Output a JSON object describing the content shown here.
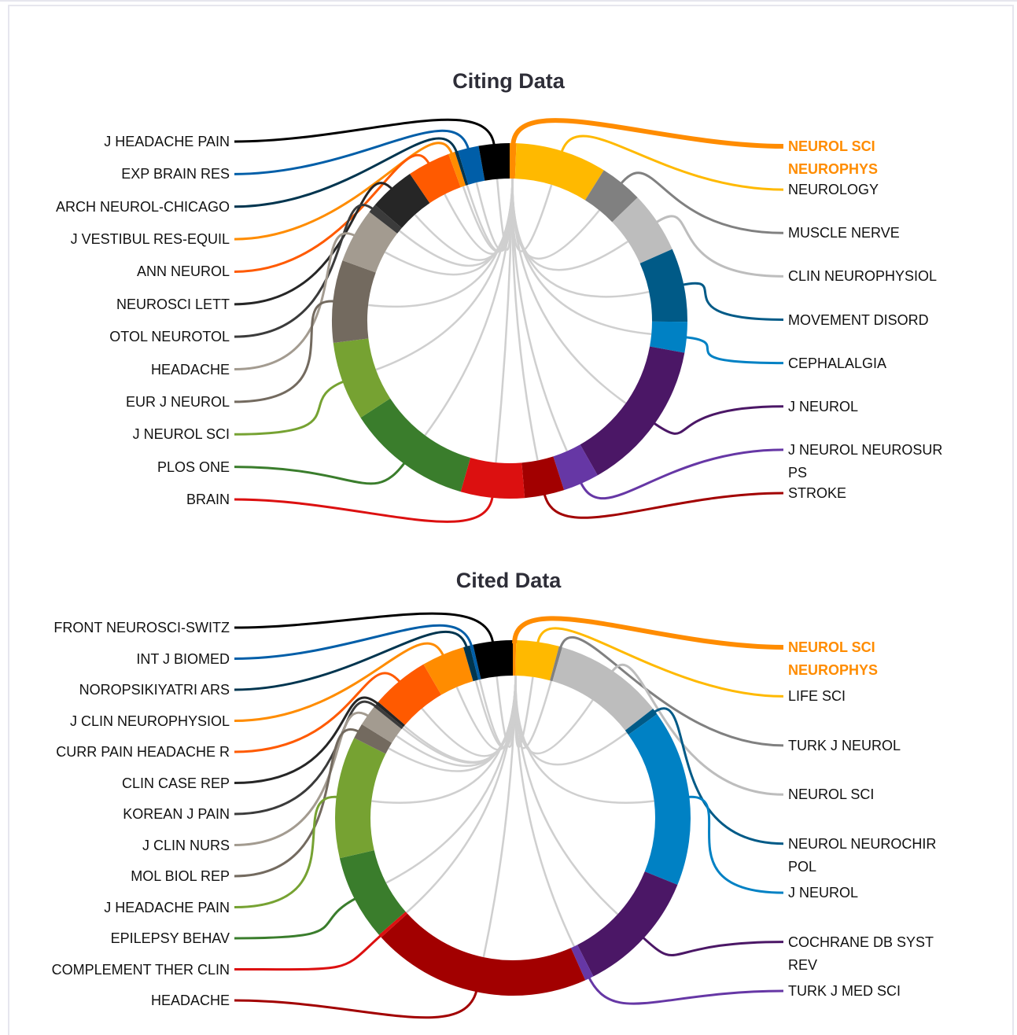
{
  "chart_data": [
    {
      "type": "chord",
      "title": "Citing Data",
      "highlight": 0,
      "categories": [
        "NEUROL SCI NEUROPHYS",
        "NEUROLOGY",
        "MUSCLE NERVE",
        "CLIN NEUROPHYSIOL",
        "MOVEMENT DISORD",
        "CEPHALALGIA",
        "J NEUROL",
        "J NEUROL NEUROSUR PS",
        "STROKE",
        "BRAIN",
        "PLOS ONE",
        "J NEUROL SCI",
        "EUR J NEUROL",
        "HEADACHE",
        "OTOL NEUROTOL",
        "NEUROSCI LETT",
        "ANN NEUROL",
        "J VESTIBUL RES-EQUIL",
        "ARCH NEUROL-CHICAGO",
        "EXP BRAIN RES",
        "J HEADACHE PAIN"
      ],
      "values": [
        0.6,
        8.3,
        3.9,
        5.6,
        6.7,
        2.8,
        13.9,
        3.3,
        3.6,
        5.8,
        11.4,
        7.2,
        7.5,
        5,
        0.8,
        4.2,
        3.9,
        0.6,
        0.3,
        1.9,
        2.8
      ],
      "colors": [
        "#ff8c00",
        "#ffb900",
        "#808080",
        "#bdbdbd",
        "#005a87",
        "#0081c4",
        "#4b1766",
        "#6637a5",
        "#a20000",
        "#dc1010",
        "#3a7d2c",
        "#76a232",
        "#736a5f",
        "#a39b90",
        "#3b3b3b",
        "#262626",
        "#ff5a00",
        "#ff8c00",
        "#00354f",
        "#005ea8",
        "#000000"
      ]
    },
    {
      "type": "chord",
      "title": "Cited Data",
      "highlight": 0,
      "categories": [
        "NEUROL SCI NEUROPHYS",
        "LIFE SCI",
        "TURK J NEUROL",
        "NEUROL SCI",
        "NEUROL NEUROCHIR POL",
        "J NEUROL",
        "COCHRANE DB SYST REV",
        "TURK J MED SCI",
        "HEADACHE",
        "COMPLEMENT THER CLIN",
        "EPILEPSY BEHAV",
        "J HEADACHE PAIN",
        "MOL BIOL REP",
        "J CLIN NURS",
        "KOREAN J PAIN",
        "CLIN CASE REP",
        "CURR PAIN HEADACHE R",
        "J CLIN NEUROPHYSIOL",
        "NOROPSIKIYATRI ARS",
        "INT J BIOMED",
        "FRONT NEUROSCI-SWITZ"
      ],
      "values": [
        0.3,
        3.9,
        0.3,
        10,
        0.6,
        16.1,
        11.4,
        0.8,
        20,
        0.3,
        7.8,
        11.1,
        1.4,
        1.9,
        0.3,
        0.3,
        5.3,
        3.9,
        0.6,
        0.3,
        3.6
      ],
      "colors": [
        "#ff8c00",
        "#ffb900",
        "#808080",
        "#bdbdbd",
        "#005a87",
        "#0081c4",
        "#4b1766",
        "#6637a5",
        "#a20000",
        "#dc1010",
        "#3a7d2c",
        "#76a232",
        "#736a5f",
        "#a39b90",
        "#3b3b3b",
        "#262626",
        "#ff5a00",
        "#ff8c00",
        "#00354f",
        "#005ea8",
        "#000000"
      ]
    }
  ]
}
